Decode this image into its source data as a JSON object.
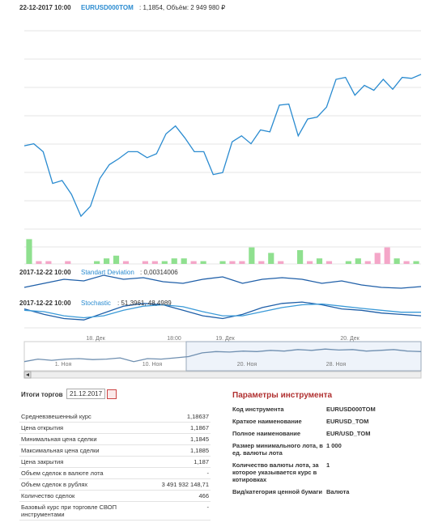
{
  "header": {
    "date": "22-12-2017 10:00",
    "ticker": "EURUSD000TOM",
    "info": " : 1,1854, Объём: 2 949 980 ₽"
  },
  "chart_data": [
    {
      "type": "line",
      "color": "#2a8bd0",
      "ylim": [
        1.17,
        1.19
      ],
      "values": [
        1.1784,
        1.1786,
        1.1778,
        1.1746,
        1.1749,
        1.1735,
        1.1713,
        1.1723,
        1.1751,
        1.1765,
        1.1771,
        1.1778,
        1.1778,
        1.1772,
        1.1776,
        1.1796,
        1.1804,
        1.1792,
        1.1778,
        1.1778,
        1.1755,
        1.1757,
        1.1788,
        1.1794,
        1.1786,
        1.18,
        1.1798,
        1.1825,
        1.1826,
        1.1794,
        1.1811,
        1.1813,
        1.1823,
        1.1851,
        1.1853,
        1.1835,
        1.1845,
        1.184,
        1.1851,
        1.1841,
        1.1853,
        1.1852,
        1.1856
      ],
      "x_tick_labels": [
        "18. Дек",
        "18:00",
        "19. Дек",
        "20. Дек"
      ]
    },
    {
      "type": "bar",
      "ylim": [
        0,
        10
      ],
      "values": [
        9,
        1,
        1,
        0,
        1,
        0,
        0,
        1,
        2,
        3,
        1,
        0,
        1,
        1,
        1,
        2,
        2,
        1,
        1,
        0,
        1,
        1,
        1,
        6,
        1,
        4,
        1,
        0,
        5,
        1,
        2,
        1,
        0,
        1,
        2,
        1,
        4,
        6,
        2,
        1,
        1
      ],
      "colors": [
        "#8fe08f",
        "#f4a6c8",
        "#f4a6c8",
        "#8fe08f",
        "#f4a6c8",
        "#8fe08f",
        "#f4a6c8",
        "#8fe08f",
        "#8fe08f",
        "#8fe08f",
        "#f4a6c8",
        "#8fe08f",
        "#f4a6c8",
        "#f4a6c8",
        "#8fe08f",
        "#8fe08f",
        "#8fe08f",
        "#f4a6c8",
        "#8fe08f",
        "#f4a6c8",
        "#8fe08f",
        "#f4a6c8",
        "#f4a6c8",
        "#8fe08f",
        "#f4a6c8",
        "#8fe08f",
        "#f4a6c8",
        "#8fe08f",
        "#8fe08f",
        "#f4a6c8",
        "#8fe08f",
        "#f4a6c8",
        "#8fe08f",
        "#8fe08f",
        "#8fe08f",
        "#f4a6c8",
        "#f4a6c8",
        "#f4a6c8",
        "#8fe08f",
        "#f4a6c8",
        "#8fe08f"
      ]
    },
    {
      "type": "line",
      "color": "#1f5fa8",
      "ylim": [
        0,
        1
      ],
      "title_date": "2017-12-22 10:00",
      "indicator": "Standart Deviation",
      "reading": " : 0,00314006",
      "values": [
        0.2,
        0.4,
        0.6,
        0.52,
        0.8,
        0.6,
        0.68,
        0.48,
        0.4,
        0.6,
        0.72,
        0.4,
        0.6,
        0.68,
        0.6,
        0.4,
        0.52,
        0.32,
        0.2,
        0.16,
        0.24
      ]
    },
    {
      "type": "multiline",
      "ylim": [
        0,
        100
      ],
      "title_date": "2017-12-22 10:00",
      "indicator": "Stochastic",
      "reading": " : 51,3961, 48,4989",
      "series": [
        {
          "color": "#1f5fa8",
          "values": [
            60,
            40,
            25,
            20,
            45,
            70,
            80,
            75,
            55,
            35,
            25,
            40,
            65,
            80,
            85,
            75,
            60,
            55,
            45,
            40,
            35
          ]
        },
        {
          "color": "#3a9ad8",
          "values": [
            55,
            50,
            35,
            28,
            35,
            55,
            70,
            75,
            68,
            50,
            35,
            35,
            50,
            65,
            75,
            78,
            70,
            62,
            55,
            48,
            48
          ]
        }
      ]
    },
    {
      "type": "line",
      "color": "#6f8fb0",
      "ylim": [
        0,
        10
      ],
      "values": [
        3,
        4,
        3.5,
        4,
        4.2,
        3.8,
        4,
        4.5,
        3,
        4.2,
        4,
        4.5,
        5,
        6.5,
        7,
        6.8,
        7.2,
        7,
        7.5,
        7.2,
        7.8,
        7.5,
        8,
        7.6,
        7.8,
        7.2,
        7.5,
        7.8,
        7.2,
        7
      ],
      "x_tick_labels": [
        "1. Ноя",
        "10. Ноя",
        "20. Ноя",
        "28. Ноя"
      ]
    }
  ],
  "summary": {
    "title": "Итоги торгов",
    "date": "21.12.2017",
    "rows": [
      [
        "Средневзвешенный курс",
        "1,18637"
      ],
      [
        "Цена открытия",
        "1,1867"
      ],
      [
        "Минимальная цена сделки",
        "1,1845"
      ],
      [
        "Максимальная цена сделки",
        "1,1885"
      ],
      [
        "Цена закрытия",
        "1,187"
      ],
      [
        "Объем сделок в валюте лота",
        "-"
      ],
      [
        "Объем сделок в рублях",
        "3 491 932 148,71"
      ],
      [
        "Количество сделок",
        "466"
      ],
      [
        "Базовый курс при торговле СВОП инструментами",
        "-"
      ]
    ]
  },
  "params": {
    "title": "Параметры инструмента",
    "rows": [
      [
        "Код инструмента",
        "EURUSD000TOM"
      ],
      [
        "Краткое наименование",
        "EURUSD_TOM"
      ],
      [
        "Полное наименование",
        "EUR/USD_TOM"
      ],
      [
        "Размер минимального лота, в ед. валюты лота",
        "1 000"
      ],
      [
        "Количество валюты лота, за которое указывается курс в котировках",
        "1"
      ],
      [
        "Вид/категория ценной бумаги",
        "Валюта"
      ]
    ]
  }
}
